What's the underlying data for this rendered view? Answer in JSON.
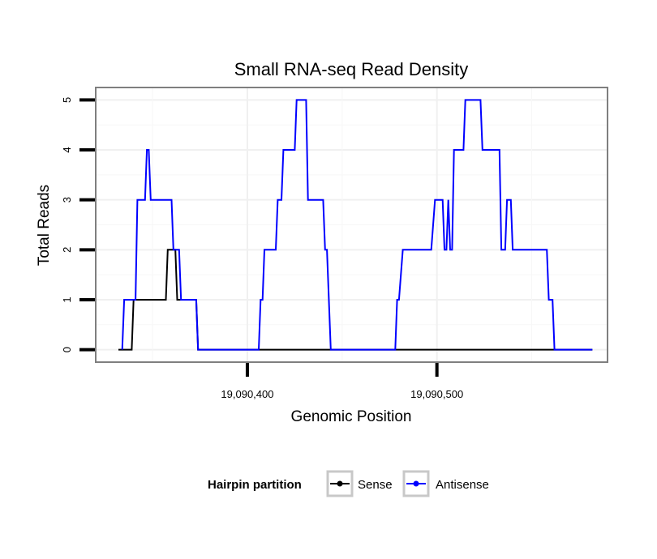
{
  "chart_data": {
    "type": "line",
    "title": "Small RNA-seq Read Density",
    "xlabel": "Genomic Position",
    "ylabel": "Total Reads",
    "xlim": [
      19090320,
      19090590
    ],
    "ylim": [
      -0.25,
      5.25
    ],
    "xticks": [
      19090400,
      19090500
    ],
    "xtick_labels": [
      "19,090,400",
      "19,090,500"
    ],
    "yticks": [
      0,
      1,
      2,
      3,
      4,
      5
    ],
    "ytick_labels": [
      "0",
      "1",
      "2",
      "3",
      "4",
      "5"
    ],
    "grid": true,
    "legend": {
      "title": "Hairpin partition",
      "placement": "bottom"
    },
    "series": [
      {
        "name": "Sense",
        "color": "#000000",
        "points": [
          [
            19090332,
            0
          ],
          [
            19090339,
            0
          ],
          [
            19090340,
            1
          ],
          [
            19090350,
            1
          ],
          [
            19090350,
            1
          ],
          [
            19090357,
            1
          ],
          [
            19090358,
            2
          ],
          [
            19090362,
            2
          ],
          [
            19090363,
            1
          ],
          [
            19090373,
            1
          ],
          [
            19090374,
            0
          ],
          [
            19090582,
            0
          ]
        ]
      },
      {
        "name": "Antisense",
        "color": "#0000ff",
        "points": [
          [
            19090334,
            0
          ],
          [
            19090335,
            1
          ],
          [
            19090341,
            1
          ],
          [
            19090342,
            3
          ],
          [
            19090346,
            3
          ],
          [
            19090347,
            4
          ],
          [
            19090348,
            4
          ],
          [
            19090349,
            3
          ],
          [
            19090360,
            3
          ],
          [
            19090361,
            2
          ],
          [
            19090364,
            2
          ],
          [
            19090365,
            1
          ],
          [
            19090373,
            1
          ],
          [
            19090374,
            0
          ],
          [
            19090406,
            0
          ],
          [
            19090407,
            1
          ],
          [
            19090408,
            1
          ],
          [
            19090409,
            2
          ],
          [
            19090415,
            2
          ],
          [
            19090416,
            3
          ],
          [
            19090418,
            3
          ],
          [
            19090419,
            4
          ],
          [
            19090425,
            4
          ],
          [
            19090426,
            5
          ],
          [
            19090431,
            5
          ],
          [
            19090432,
            3
          ],
          [
            19090440,
            3
          ],
          [
            19090441,
            2
          ],
          [
            19090442,
            2
          ],
          [
            19090444,
            0
          ],
          [
            19090478,
            0
          ],
          [
            19090479,
            1
          ],
          [
            19090480,
            1
          ],
          [
            19090482,
            2
          ],
          [
            19090497,
            2
          ],
          [
            19090499,
            3
          ],
          [
            19090503,
            3
          ],
          [
            19090504,
            2
          ],
          [
            19090505,
            2
          ],
          [
            19090506,
            3
          ],
          [
            19090507,
            2
          ],
          [
            19090508,
            2
          ],
          [
            19090509,
            4
          ],
          [
            19090514,
            4
          ],
          [
            19090515,
            5
          ],
          [
            19090523,
            5
          ],
          [
            19090524,
            4
          ],
          [
            19090533,
            4
          ],
          [
            19090534,
            2
          ],
          [
            19090536,
            2
          ],
          [
            19090537,
            3
          ],
          [
            19090539,
            3
          ],
          [
            19090540,
            2
          ],
          [
            19090558,
            2
          ],
          [
            19090559,
            1
          ],
          [
            19090561,
            1
          ],
          [
            19090562,
            0
          ],
          [
            19090582,
            0
          ]
        ]
      }
    ]
  }
}
